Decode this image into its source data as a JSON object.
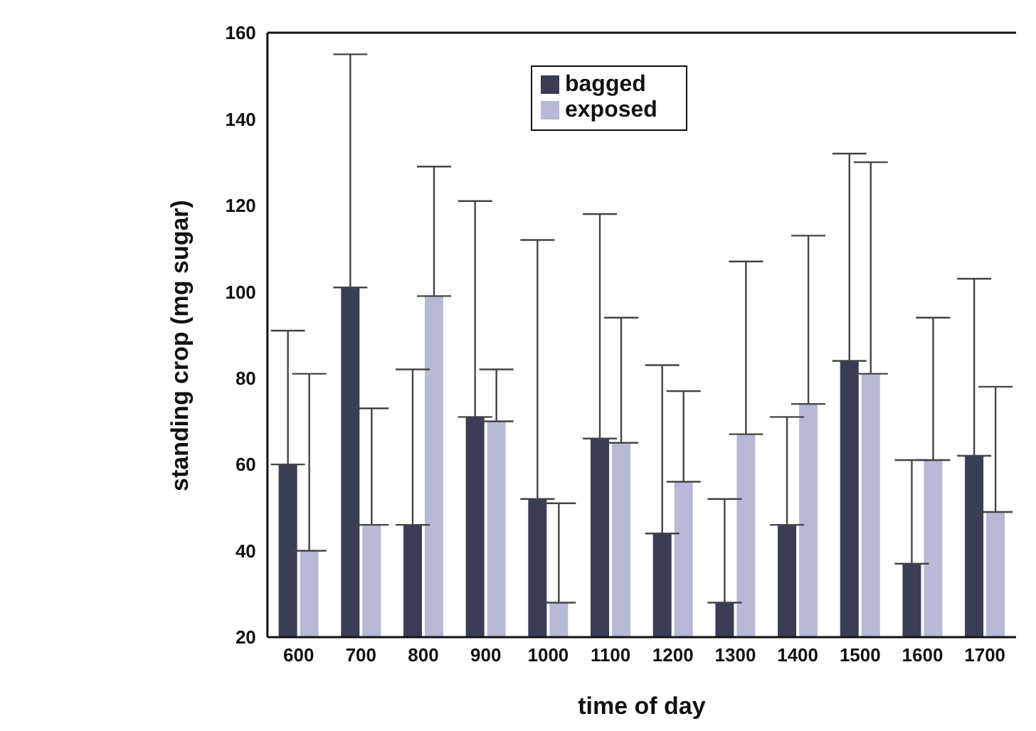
{
  "chart_data": {
    "type": "bar",
    "xlabel": "time of day",
    "ylabel": "standing crop (mg sugar)",
    "categories": [
      "600",
      "700",
      "800",
      "900",
      "1000",
      "1100",
      "1200",
      "1300",
      "1400",
      "1500",
      "1600",
      "1700"
    ],
    "series": [
      {
        "name": "bagged",
        "color": "#3b3d57",
        "values": [
          60,
          101,
          46,
          71,
          52,
          66,
          44,
          28,
          46,
          84,
          37,
          62
        ],
        "errors": [
          [
            60,
            91
          ],
          [
            101,
            155
          ],
          [
            46,
            82
          ],
          [
            71,
            121
          ],
          [
            52,
            112
          ],
          [
            66,
            118
          ],
          [
            44,
            83
          ],
          [
            28,
            52
          ],
          [
            46,
            71
          ],
          [
            84,
            132
          ],
          [
            37,
            61
          ],
          [
            62,
            103
          ]
        ]
      },
      {
        "name": "exposed",
        "color": "#b8b9d6",
        "values": [
          40,
          46,
          99,
          70,
          28,
          65,
          56,
          67,
          74,
          81,
          61,
          49
        ],
        "errors": [
          [
            40,
            81
          ],
          [
            46,
            73
          ],
          [
            99,
            129
          ],
          [
            70,
            82
          ],
          [
            28,
            51
          ],
          [
            65,
            94
          ],
          [
            56,
            77
          ],
          [
            67,
            107
          ],
          [
            74,
            113
          ],
          [
            81,
            130
          ],
          [
            61,
            94
          ],
          [
            49,
            78
          ]
        ]
      }
    ],
    "ylim": [
      20,
      160
    ],
    "yticks": [
      20,
      40,
      60,
      80,
      100,
      120,
      140,
      160
    ],
    "grid": false,
    "legend": "top"
  }
}
